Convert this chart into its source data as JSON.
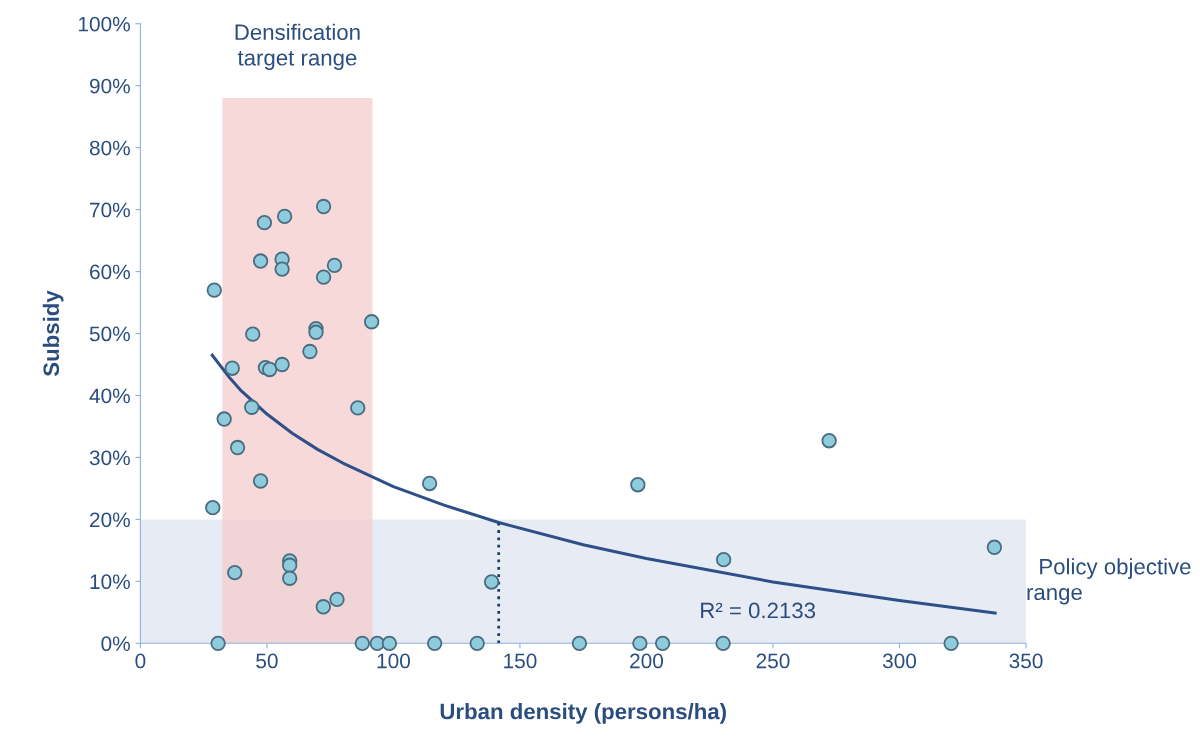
{
  "chart_data": {
    "type": "scatter",
    "xlabel": "Urban density (persons/ha)",
    "ylabel": "Subsidy",
    "xlim": [
      0,
      350
    ],
    "xticks": [
      0,
      50,
      100,
      150,
      200,
      250,
      300,
      350
    ],
    "ylim": [
      0,
      100
    ],
    "yticks": [
      {
        "value": 0,
        "label": "0%"
      },
      {
        "value": 10,
        "label": "10%"
      },
      {
        "value": 20,
        "label": "20%"
      },
      {
        "value": 30,
        "label": "30%"
      },
      {
        "value": 40,
        "label": "40%"
      },
      {
        "value": 50,
        "label": "50%"
      },
      {
        "value": 60,
        "label": "60%"
      },
      {
        "value": 70,
        "label": "70%"
      },
      {
        "value": 80,
        "label": "80%"
      },
      {
        "value": 90,
        "label": "90%"
      },
      {
        "value": 100,
        "label": "100%"
      }
    ],
    "grid": false,
    "marker": "circle",
    "series": [
      {
        "color": "#8ecbdc",
        "x": [
          29.2,
          49.0,
          57.0,
          72.4,
          47.5,
          56.0,
          56.0,
          72.4,
          76.7,
          91.4,
          44.4,
          69.4,
          69.4,
          67.0,
          36.3,
          49.4,
          51.1,
          56.0,
          44.0,
          85.9,
          33.1,
          38.4,
          47.5,
          28.6,
          37.3,
          59.0,
          59.0,
          59.0,
          72.3,
          77.7,
          30.7,
          87.7,
          93.6,
          98.4,
          114.3,
          138.8,
          196.6,
          272.2,
          230.5,
          337.5,
          116.3,
          133.1,
          173.5,
          197.4,
          206.4,
          230.3,
          320.4
        ],
        "values": [
          57.0,
          67.9,
          68.9,
          70.5,
          61.7,
          62.0,
          60.4,
          59.1,
          61.0,
          51.9,
          49.9,
          50.8,
          50.2,
          47.1,
          44.4,
          44.5,
          44.2,
          45.0,
          38.1,
          38.0,
          36.2,
          31.6,
          26.2,
          21.9,
          11.4,
          13.3,
          12.6,
          10.5,
          5.9,
          7.1,
          0,
          0,
          0,
          0,
          25.8,
          9.9,
          25.6,
          32.7,
          13.5,
          15.5,
          0,
          0,
          0,
          0,
          0,
          0,
          0
        ]
      },
      {
        "type": "line",
        "color": "#2e5088",
        "marker": "none",
        "line_style": "solid",
        "x": [
          28.4,
          35,
          40,
          50,
          60,
          70,
          80,
          100,
          120,
          141.6,
          175,
          200,
          250,
          300,
          337.8
        ],
        "values": [
          46.5,
          43.0,
          40.7,
          37.0,
          33.9,
          31.3,
          29.1,
          25.3,
          22.3,
          19.5,
          15.9,
          13.7,
          9.9,
          6.9,
          4.9
        ]
      }
    ],
    "bands": [
      {
        "axis": "x",
        "from": 32.4,
        "to": 91.7,
        "label": "Densification\ntarget range",
        "color": "#f4cccc"
      },
      {
        "axis": "y",
        "from": 0,
        "to": 20,
        "label": "Policy objective\nrange",
        "color": "#dde3ee"
      }
    ],
    "ref_lines": [
      {
        "axis": "x",
        "value": 141.6,
        "color": "#1f3f73",
        "line_style": "dotted"
      }
    ],
    "annotations": [
      "R² = 0.2133"
    ]
  }
}
